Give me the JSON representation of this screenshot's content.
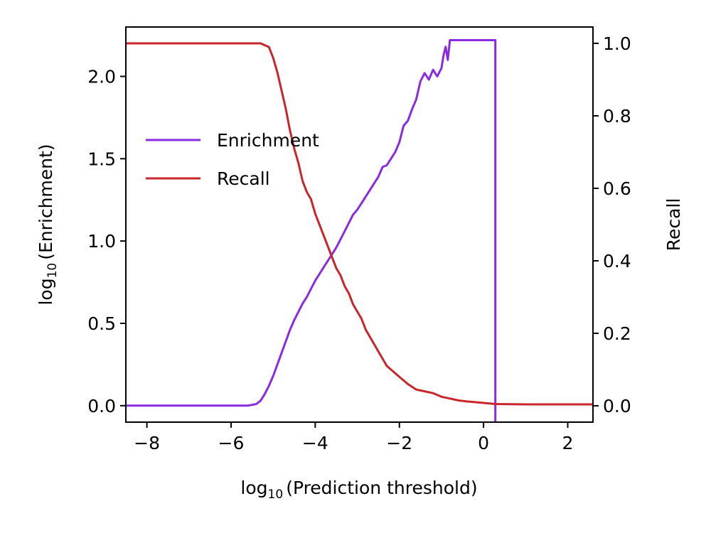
{
  "chart_data": {
    "type": "line",
    "xlabel": "(Prediction threshold)",
    "ylabel_left": "(Enrichment)",
    "ylabel_right": "Recall",
    "log_prefix": "log",
    "log_sub": "10",
    "xlim": [
      -8.5,
      2.6
    ],
    "ylim_left": [
      -0.1,
      2.3
    ],
    "ylim_right": [
      -0.045,
      1.045
    ],
    "xticks": [
      -8,
      -6,
      -4,
      -2,
      0,
      2
    ],
    "xtick_labels": [
      "−8",
      "−6",
      "−4",
      "−2",
      "0",
      "2"
    ],
    "yticks_left": [
      0.0,
      0.5,
      1.0,
      1.5,
      2.0
    ],
    "ytick_labels_left": [
      "0.0",
      "0.5",
      "1.0",
      "1.5",
      "2.0"
    ],
    "yticks_right": [
      0.0,
      0.2,
      0.4,
      0.6,
      0.8,
      1.0
    ],
    "ytick_labels_right": [
      "0.0",
      "0.2",
      "0.4",
      "0.6",
      "0.8",
      "1.0"
    ],
    "grid": false,
    "legend_position": "upper-left",
    "series": [
      {
        "name": "Enrichment",
        "axis": "left",
        "color": "#8a2be2",
        "x": [
          -8.5,
          -5.6,
          -5.4,
          -5.3,
          -5.2,
          -5.1,
          -5.0,
          -4.9,
          -4.8,
          -4.7,
          -4.6,
          -4.5,
          -4.4,
          -4.3,
          -4.2,
          -4.1,
          -4.0,
          -3.9,
          -3.8,
          -3.7,
          -3.6,
          -3.5,
          -3.4,
          -3.3,
          -3.2,
          -3.1,
          -3.0,
          -2.9,
          -2.8,
          -2.7,
          -2.6,
          -2.5,
          -2.4,
          -2.3,
          -2.2,
          -2.1,
          -2.0,
          -1.9,
          -1.8,
          -1.7,
          -1.6,
          -1.5,
          -1.4,
          -1.3,
          -1.2,
          -1.1,
          -1.0,
          -0.95,
          -0.9,
          -0.85,
          -0.8,
          0.28,
          0.28,
          0.28
        ],
        "y": [
          0.0,
          0.0,
          0.01,
          0.03,
          0.07,
          0.12,
          0.18,
          0.25,
          0.32,
          0.39,
          0.46,
          0.52,
          0.57,
          0.62,
          0.66,
          0.71,
          0.76,
          0.8,
          0.84,
          0.88,
          0.92,
          0.96,
          1.01,
          1.06,
          1.11,
          1.16,
          1.19,
          1.23,
          1.27,
          1.31,
          1.35,
          1.39,
          1.45,
          1.46,
          1.5,
          1.54,
          1.6,
          1.7,
          1.73,
          1.8,
          1.86,
          1.97,
          2.02,
          1.98,
          2.04,
          2.0,
          2.05,
          2.13,
          2.18,
          2.1,
          2.22,
          2.22,
          1.1,
          -0.1
        ]
      },
      {
        "name": "Recall",
        "axis": "right",
        "color": "#c8262b",
        "x": [
          -8.5,
          -5.3,
          -5.1,
          -5.0,
          -4.9,
          -4.8,
          -4.7,
          -4.6,
          -4.5,
          -4.4,
          -4.3,
          -4.2,
          -4.1,
          -4.0,
          -3.9,
          -3.8,
          -3.7,
          -3.6,
          -3.5,
          -3.4,
          -3.3,
          -3.2,
          -3.1,
          -3.0,
          -2.9,
          -2.8,
          -2.7,
          -2.6,
          -2.5,
          -2.4,
          -2.3,
          -2.2,
          -2.1,
          -2.0,
          -1.8,
          -1.6,
          -1.4,
          -1.2,
          -1.0,
          -0.8,
          -0.6,
          -0.4,
          -0.2,
          0.0,
          0.28,
          1.0,
          2.6
        ],
        "y": [
          1.0,
          1.0,
          0.99,
          0.96,
          0.92,
          0.87,
          0.82,
          0.76,
          0.71,
          0.67,
          0.62,
          0.59,
          0.57,
          0.53,
          0.5,
          0.47,
          0.44,
          0.41,
          0.38,
          0.36,
          0.33,
          0.31,
          0.28,
          0.26,
          0.24,
          0.21,
          0.19,
          0.17,
          0.15,
          0.13,
          0.11,
          0.1,
          0.09,
          0.08,
          0.06,
          0.045,
          0.04,
          0.035,
          0.025,
          0.02,
          0.015,
          0.012,
          0.01,
          0.008,
          0.005,
          0.004,
          0.004
        ]
      }
    ]
  }
}
